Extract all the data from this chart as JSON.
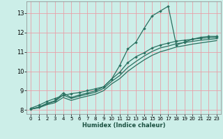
{
  "xlabel": "Humidex (Indice chaleur)",
  "background_color": "#cceee8",
  "grid_color": "#e8a0a8",
  "line_color": "#2a7060",
  "xlim": [
    -0.5,
    23.5
  ],
  "ylim": [
    7.8,
    13.6
  ],
  "xticks": [
    0,
    1,
    2,
    3,
    4,
    5,
    6,
    7,
    8,
    9,
    10,
    11,
    12,
    13,
    14,
    15,
    16,
    17,
    18,
    19,
    20,
    21,
    22,
    23
  ],
  "yticks": [
    8,
    9,
    10,
    11,
    12,
    13
  ],
  "line1_x": [
    0,
    1,
    2,
    3,
    4,
    5,
    6,
    7,
    8,
    9,
    10,
    11,
    12,
    13,
    14,
    15,
    16,
    17,
    18,
    19,
    20,
    21,
    22,
    23
  ],
  "line1_y": [
    8.1,
    8.25,
    8.45,
    8.6,
    8.75,
    8.85,
    8.9,
    9.0,
    9.1,
    9.2,
    9.6,
    10.3,
    11.15,
    11.5,
    12.2,
    12.85,
    13.1,
    13.35,
    11.35,
    11.5,
    11.65,
    11.75,
    11.8,
    11.8
  ],
  "line2_x": [
    0,
    1,
    2,
    3,
    4,
    5,
    6,
    7,
    8,
    9,
    10,
    11,
    12,
    13,
    14,
    15,
    16,
    17,
    18,
    19,
    20,
    21,
    22,
    23
  ],
  "line2_y": [
    8.05,
    8.15,
    8.35,
    8.48,
    8.88,
    8.65,
    8.78,
    8.88,
    9.0,
    9.2,
    9.6,
    9.95,
    10.45,
    10.75,
    10.95,
    11.2,
    11.35,
    11.45,
    11.55,
    11.6,
    11.65,
    11.7,
    11.73,
    11.75
  ],
  "line3_x": [
    0,
    1,
    2,
    3,
    4,
    5,
    6,
    7,
    8,
    9,
    10,
    11,
    12,
    13,
    14,
    15,
    16,
    17,
    18,
    19,
    20,
    21,
    22,
    23
  ],
  "line3_y": [
    8.05,
    8.15,
    8.33,
    8.45,
    8.78,
    8.6,
    8.72,
    8.82,
    8.92,
    9.12,
    9.48,
    9.78,
    10.2,
    10.5,
    10.78,
    11.02,
    11.2,
    11.3,
    11.42,
    11.48,
    11.54,
    11.6,
    11.64,
    11.68
  ],
  "line4_x": [
    0,
    1,
    2,
    3,
    4,
    5,
    6,
    7,
    8,
    9,
    10,
    11,
    12,
    13,
    14,
    15,
    16,
    17,
    18,
    19,
    20,
    21,
    22,
    23
  ],
  "line4_y": [
    8.05,
    8.12,
    8.28,
    8.38,
    8.65,
    8.5,
    8.62,
    8.72,
    8.82,
    9.0,
    9.35,
    9.62,
    10.0,
    10.3,
    10.58,
    10.82,
    11.0,
    11.12,
    11.25,
    11.32,
    11.4,
    11.46,
    11.52,
    11.58
  ]
}
